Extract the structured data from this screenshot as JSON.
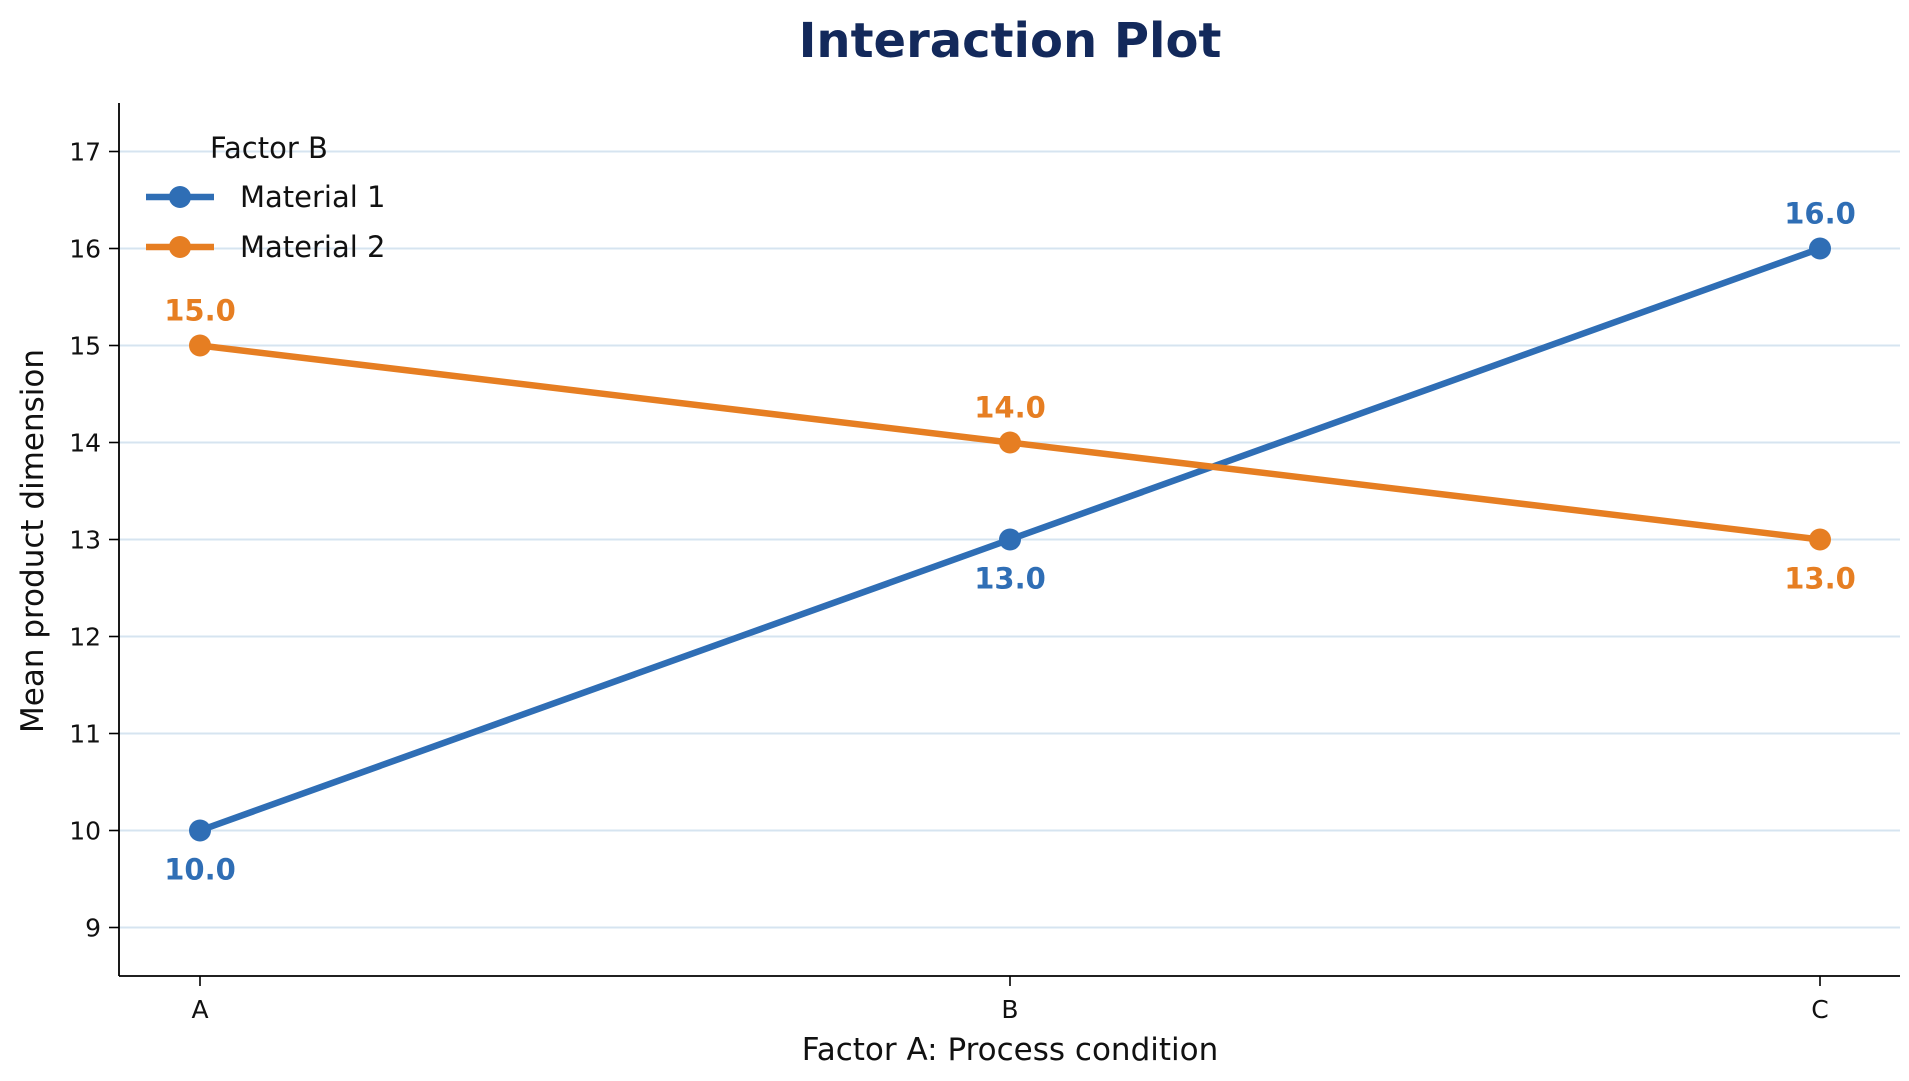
{
  "chart_data": {
    "type": "line",
    "title": "Interaction Plot",
    "xlabel": "Factor A: Process condition",
    "ylabel": "Mean product dimension",
    "categories": [
      "A",
      "B",
      "C"
    ],
    "ylim": [
      8.5,
      17.5
    ],
    "yticks": [
      "9",
      "10",
      "11",
      "12",
      "13",
      "14",
      "15",
      "16",
      "17"
    ],
    "grid": "horizontal",
    "legend": {
      "title": "Factor B",
      "placement": "top-left"
    },
    "series": [
      {
        "name": "Material 1",
        "values": [
          10.0,
          13.0,
          16.0
        ],
        "labels": [
          "10.0",
          "13.0",
          "16.0"
        ],
        "color": "#2f6eb5"
      },
      {
        "name": "Material 2",
        "values": [
          15.0,
          14.0,
          13.0
        ],
        "labels": [
          "15.0",
          "14.0",
          "13.0"
        ],
        "color": "#e67e22"
      }
    ]
  },
  "colors": {
    "title": "#13295b",
    "grid": "#d6e4f0",
    "axis": "#000000"
  }
}
